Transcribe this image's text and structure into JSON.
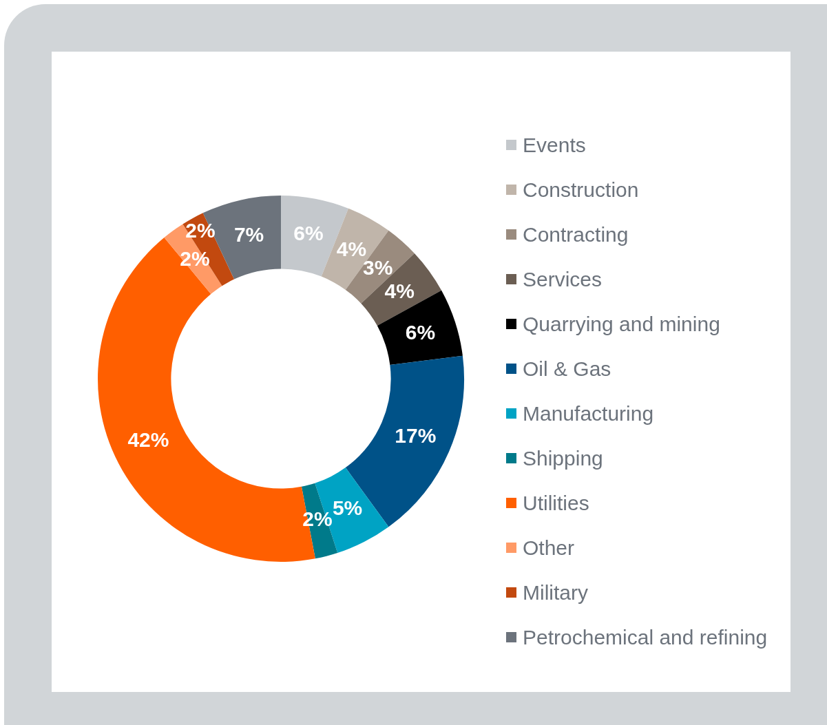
{
  "chart_data": {
    "type": "donut",
    "categories": [
      "Events",
      "Construction",
      "Contracting",
      "Services",
      "Quarrying and mining",
      "Oil & Gas",
      "Manufacturing",
      "Shipping",
      "Utilities",
      "Other",
      "Military",
      "Petrochemical and refining"
    ],
    "values": [
      6,
      4,
      3,
      4,
      6,
      17,
      5,
      2,
      42,
      2,
      2,
      7
    ],
    "colors": [
      "#c4c8cc",
      "#c0b5aa",
      "#9a8b7e",
      "#6b5e53",
      "#000000",
      "#005288",
      "#00a3c4",
      "#007a8a",
      "#ff5f00",
      "#ff9a66",
      "#c2490f",
      "#6c737c"
    ],
    "value_labels": [
      "6%",
      "4%",
      "3%",
      "4%",
      "6%",
      "17%",
      "5%",
      "2%",
      "42%",
      "2%",
      "2%",
      "7%"
    ],
    "legend": "right"
  }
}
